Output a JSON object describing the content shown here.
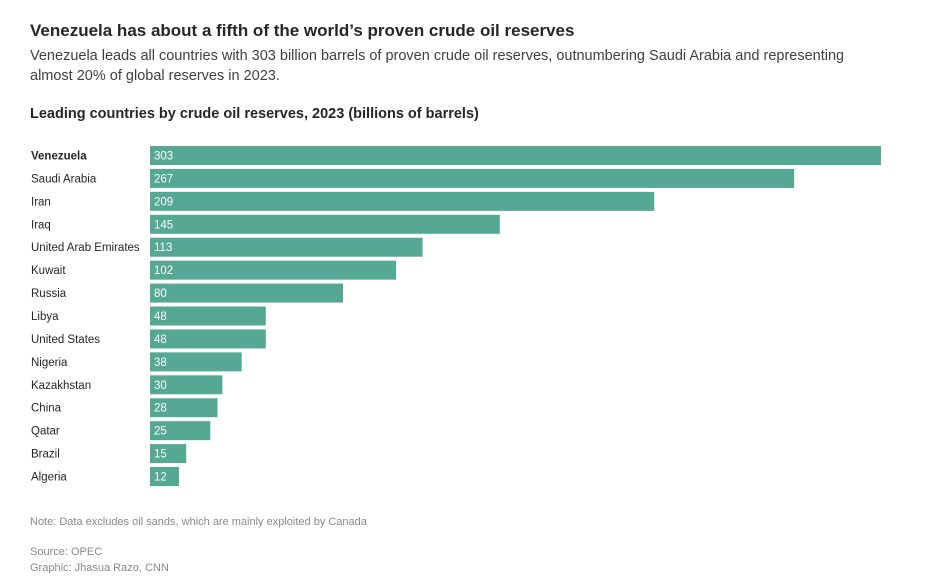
{
  "headline": "Venezuela has about a fifth of the world’s proven crude oil reserves",
  "dek": "Venezuela leads all countries with 303 billion barrels of proven crude oil reserves, outnumbering Saudi Arabia and representing almost 20% of global reserves in 2023.",
  "note": "Note: Data excludes oil sands, which are mainly exploited by Canada",
  "source": "Source: OPEC",
  "credit": "Graphic: Jhasua Razo, CNN",
  "chart_data": {
    "type": "bar",
    "orientation": "horizontal",
    "title": "Leading countries by crude oil reserves, 2023 (billions of barrels)",
    "categories": [
      "Venezuela",
      "Saudi Arabia",
      "Iran",
      "Iraq",
      "United Arab Emirates",
      "Kuwait",
      "Russia",
      "Libya",
      "United States",
      "Nigeria",
      "Kazakhstan",
      "China",
      "Qatar",
      "Brazil",
      "Algeria"
    ],
    "values": [
      303,
      267,
      209,
      145,
      113,
      102,
      80,
      48,
      48,
      38,
      30,
      28,
      25,
      15,
      12
    ],
    "highlight": "Venezuela",
    "bar_color": "#54a894",
    "label_color": "#ffffff",
    "grid": false
  }
}
